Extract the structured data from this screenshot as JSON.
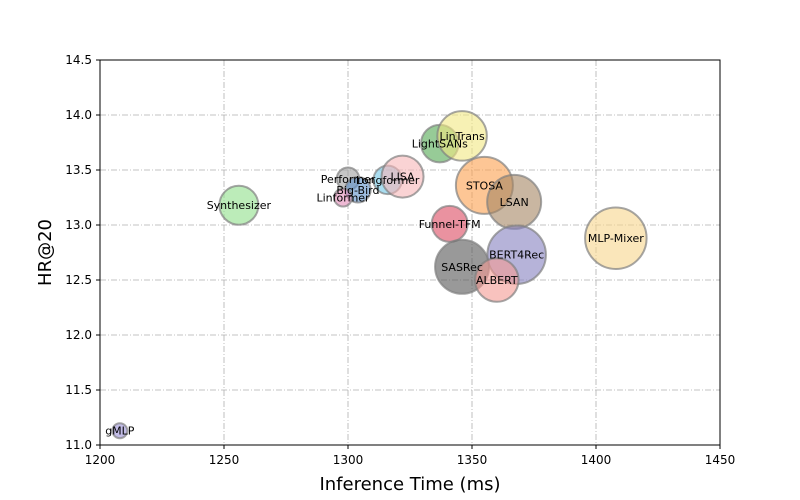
{
  "chart_data": {
    "type": "scatter",
    "title": "",
    "xlabel": "Inference Time (ms)",
    "ylabel": "HR@20",
    "xlim": [
      1200,
      1450
    ],
    "ylim": [
      11.0,
      14.5
    ],
    "xticks": [
      1200,
      1250,
      1300,
      1350,
      1400,
      1450
    ],
    "xtick_labels": [
      "1200",
      "1250",
      "1300",
      "1350",
      "1400",
      "1450"
    ],
    "yticks": [
      11.0,
      11.5,
      12.0,
      12.5,
      13.0,
      13.5,
      14.0,
      14.5
    ],
    "ytick_labels": [
      "11.0",
      "11.5",
      "12.0",
      "12.5",
      "13.0",
      "13.5",
      "14.0",
      "14.5"
    ],
    "grid": true,
    "legend": false,
    "points": [
      {
        "label": "gMLP",
        "x": 1208,
        "y": 11.13,
        "size": 1.0,
        "color": "#9a8fd6"
      },
      {
        "label": "Synthesizer",
        "x": 1256,
        "y": 13.18,
        "size": 2.6,
        "color": "#90e08a"
      },
      {
        "label": "Performer",
        "x": 1300,
        "y": 13.42,
        "size": 1.5,
        "color": "#a0a0a0"
      },
      {
        "label": "Big-Bird",
        "x": 1304,
        "y": 13.32,
        "size": 1.7,
        "color": "#5b8fc9"
      },
      {
        "label": "Linformer",
        "x": 1298,
        "y": 13.25,
        "size": 1.2,
        "color": "#e38ab8"
      },
      {
        "label": "Longformer",
        "x": 1316,
        "y": 13.41,
        "size": 1.9,
        "color": "#6fc6e6"
      },
      {
        "label": "LISA",
        "x": 1322,
        "y": 13.44,
        "size": 2.8,
        "color": "#f6b5b8"
      },
      {
        "label": "LightSANs",
        "x": 1337,
        "y": 13.74,
        "size": 2.5,
        "color": "#52a852"
      },
      {
        "label": "LinTrans",
        "x": 1346,
        "y": 13.81,
        "size": 3.3,
        "color": "#f2e882"
      },
      {
        "label": "STOSA",
        "x": 1355,
        "y": 13.36,
        "size": 3.8,
        "color": "#fca04e"
      },
      {
        "label": "LSAN",
        "x": 1367,
        "y": 13.21,
        "size": 3.6,
        "color": "#a58563"
      },
      {
        "label": "Funnel-TFM",
        "x": 1341,
        "y": 13.01,
        "size": 2.4,
        "color": "#dc4a60"
      },
      {
        "label": "SASRec",
        "x": 1346,
        "y": 12.62,
        "size": 3.6,
        "color": "#555555"
      },
      {
        "label": "BERT4Rec",
        "x": 1368,
        "y": 12.73,
        "size": 3.9,
        "color": "#8680c0"
      },
      {
        "label": "ALBERT",
        "x": 1360,
        "y": 12.5,
        "size": 2.9,
        "color": "#f39a93"
      },
      {
        "label": "MLP-Mixer",
        "x": 1408,
        "y": 12.88,
        "size": 4.1,
        "color": "#f6d68c"
      }
    ]
  }
}
